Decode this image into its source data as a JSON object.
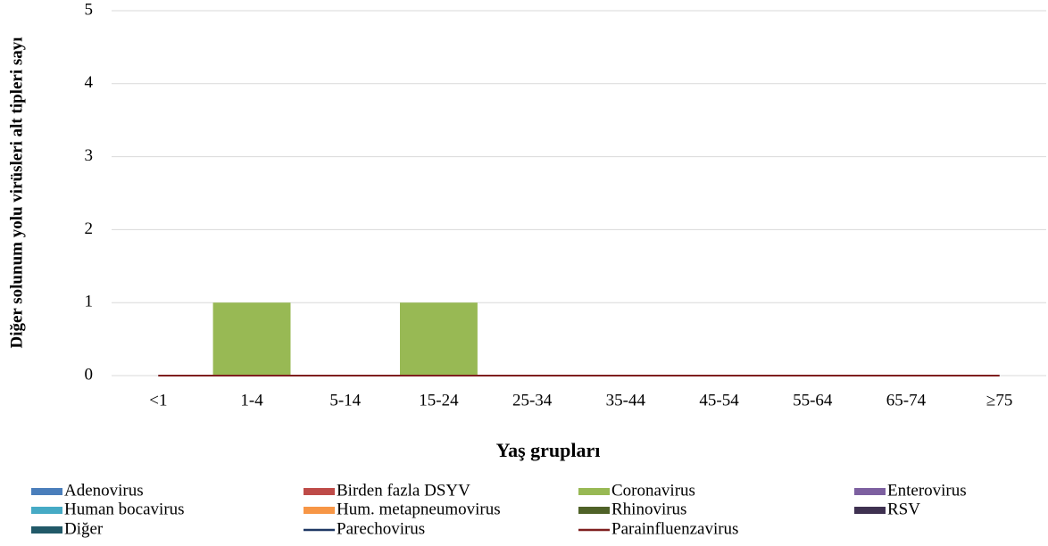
{
  "chart_data": {
    "type": "stacked_bar",
    "x_label": "Yaş grupları",
    "y_label": "Diğer solunum yolu virüsleri alt tipleri sayı",
    "categories": [
      "<1",
      "1-4",
      "5-14",
      "15-24",
      "25-34",
      "35-44",
      "45-54",
      "55-64",
      "65-74",
      "≥75"
    ],
    "series": [
      {
        "name": "Adenovirus",
        "color": "#4a7ebb",
        "values": [
          0,
          0,
          0,
          0,
          0,
          0,
          0,
          0,
          0,
          0
        ]
      },
      {
        "name": "Birden fazla DSYV",
        "color": "#be4b48",
        "values": [
          0,
          0,
          0,
          0,
          0,
          0,
          0,
          0,
          0,
          0
        ]
      },
      {
        "name": "Coronavirus",
        "color": "#98b954",
        "values": [
          0,
          1,
          0,
          1,
          0,
          0,
          0,
          0,
          0,
          0
        ]
      },
      {
        "name": "Enterovirus",
        "color": "#7d60a0",
        "values": [
          0,
          0,
          0,
          0,
          0,
          0,
          0,
          0,
          0,
          0
        ]
      },
      {
        "name": "Human bocavirus",
        "color": "#46aac5",
        "values": [
          0,
          0,
          0,
          0,
          0,
          0,
          0,
          0,
          0,
          0
        ]
      },
      {
        "name": "Hum. metapneumovirus",
        "color": "#f79646",
        "values": [
          0,
          0,
          0,
          0,
          0,
          0,
          0,
          0,
          0,
          0
        ]
      },
      {
        "name": "Rhinovirus",
        "color": "#4f6228",
        "values": [
          0,
          0,
          0,
          0,
          0,
          0,
          0,
          0,
          0,
          0
        ]
      },
      {
        "name": "RSV",
        "color": "#3f3151",
        "values": [
          0,
          0,
          0,
          0,
          0,
          0,
          0,
          0,
          0,
          0
        ]
      },
      {
        "name": "Diğer",
        "color": "#215968",
        "values": [
          0,
          0,
          0,
          0,
          0,
          0,
          0,
          0,
          0,
          0
        ]
      },
      {
        "name": "Parechovirus",
        "color": "#1f3864",
        "mark": "line",
        "values": [
          0,
          0,
          0,
          0,
          0,
          0,
          0,
          0,
          0,
          0
        ]
      },
      {
        "name": "Parainfluenzavirus",
        "color": "#7f1f1f",
        "mark": "line",
        "values": [
          0,
          0,
          0,
          0,
          0,
          0,
          0,
          0,
          0,
          0
        ]
      }
    ],
    "ylim": [
      0,
      5
    ],
    "yticks": [
      0,
      1,
      2,
      3,
      4,
      5
    ],
    "grid": true
  }
}
